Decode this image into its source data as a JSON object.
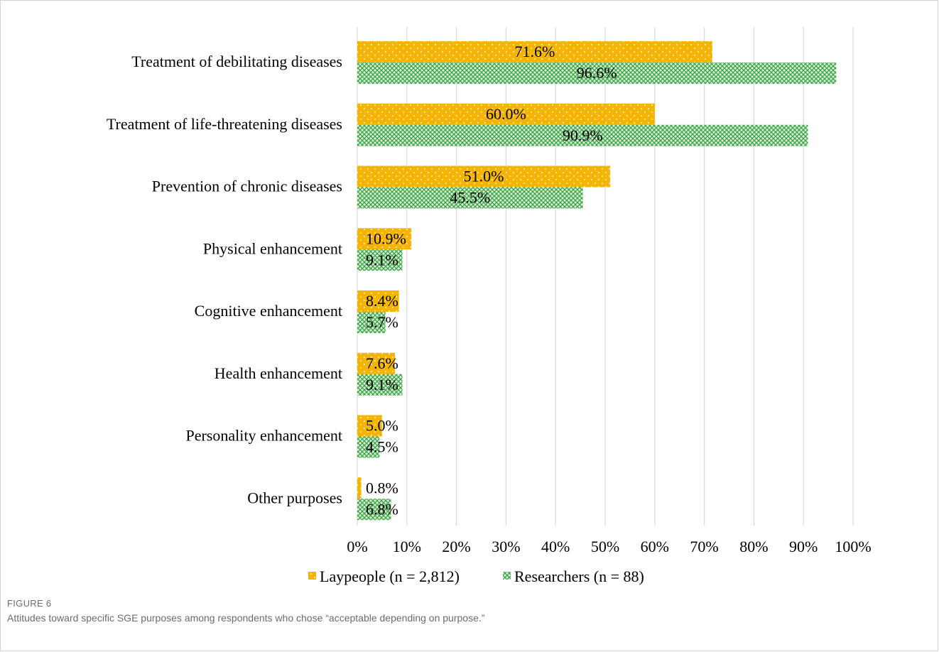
{
  "colors": {
    "laypeople": "#f4b400",
    "laypeople_dots": "#fde9b0",
    "researchers_bg": "#d9efd0",
    "researchers_pattern": "#3aa14b",
    "grid": "#d9d9d9"
  },
  "caption": {
    "label": "FIGURE 6",
    "text": "Attitudes toward specific SGE purposes among respondents who chose “acceptable depending on purpose.”"
  },
  "chart_data": {
    "type": "bar",
    "orientation": "horizontal",
    "categories": [
      "Treatment of debilitating diseases",
      "Treatment of life-threatening diseases",
      "Prevention of chronic diseases",
      "Physical enhancement",
      "Cognitive enhancement",
      "Health enhancement",
      "Personality enhancement",
      "Other purposes"
    ],
    "series": [
      {
        "name": "Laypeople (n = 2,812)",
        "values": [
          71.6,
          60.0,
          51.0,
          10.9,
          8.4,
          7.6,
          5.0,
          0.8
        ],
        "labels": [
          "71.6%",
          "60.0%",
          "51.0%",
          "10.9%",
          "8.4%",
          "7.6%",
          "5.0%",
          "0.8%"
        ]
      },
      {
        "name": "Researchers (n = 88)",
        "values": [
          96.6,
          90.9,
          45.5,
          9.1,
          5.7,
          9.1,
          4.5,
          6.8
        ],
        "labels": [
          "96.6%",
          "90.9%",
          "45.5%",
          "9.1%",
          "5.7%",
          "9.1%",
          "4.5%",
          "6.8%"
        ]
      }
    ],
    "x_ticks": [
      "0%",
      "10%",
      "20%",
      "30%",
      "40%",
      "50%",
      "60%",
      "70%",
      "80%",
      "90%",
      "100%"
    ],
    "xlim": [
      0,
      100
    ],
    "grid": true,
    "legend": "bottom-center"
  }
}
